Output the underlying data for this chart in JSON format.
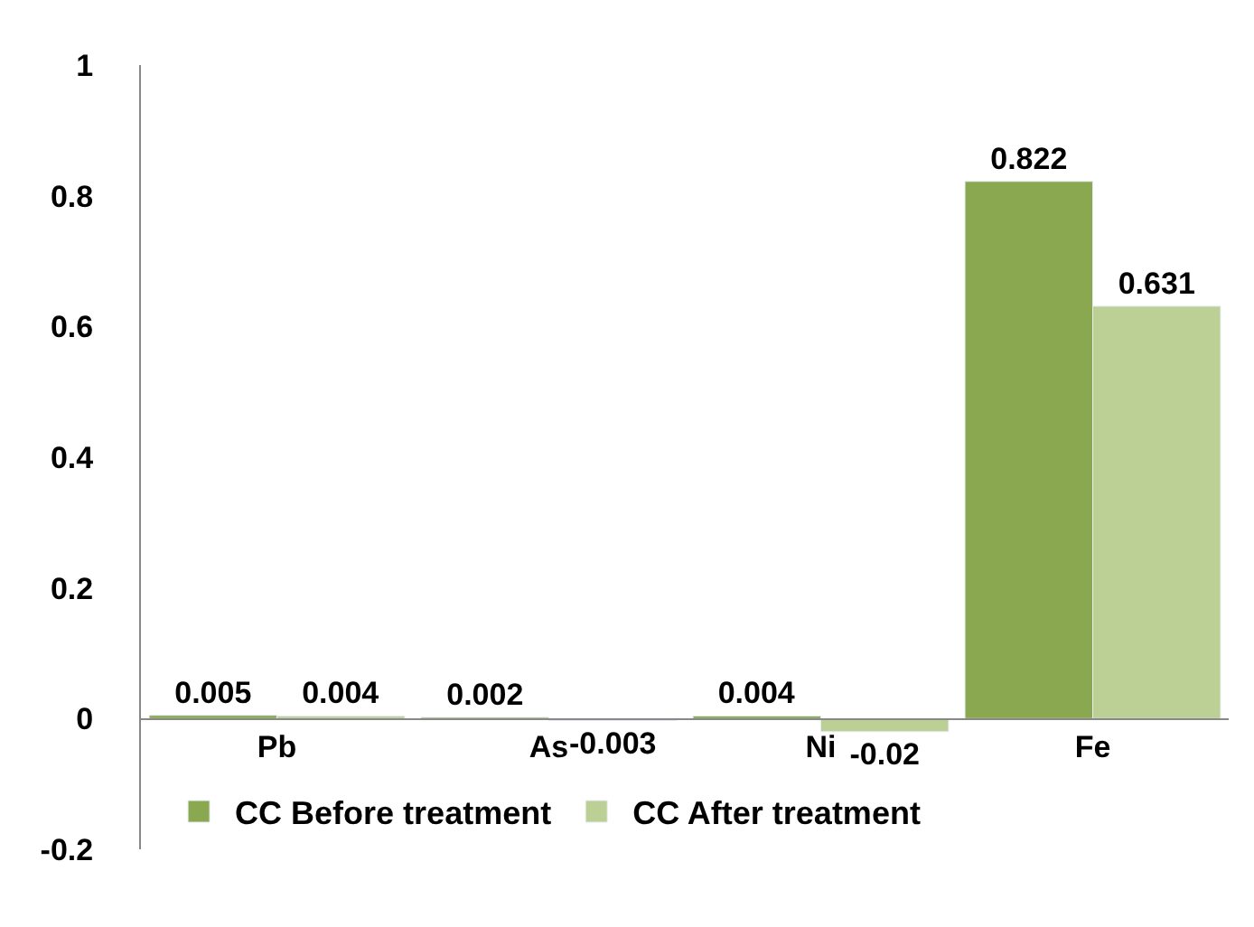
{
  "chart_data": {
    "type": "bar",
    "categories": [
      "Pb",
      "As",
      "Ni",
      "Fe"
    ],
    "series": [
      {
        "name": "CC Before treatment",
        "color": "#8aa84f",
        "values": [
          0.005,
          0.002,
          0.004,
          0.822
        ]
      },
      {
        "name": "CC After treatment",
        "color": "#bccf95",
        "values": [
          0.004,
          -0.003,
          -0.02,
          0.631
        ]
      }
    ],
    "ylim": [
      -0.2,
      1
    ],
    "yticks": [
      -0.2,
      0,
      0.2,
      0.4,
      0.6,
      0.8,
      1
    ],
    "legend": "bottom",
    "data_labels": true
  }
}
